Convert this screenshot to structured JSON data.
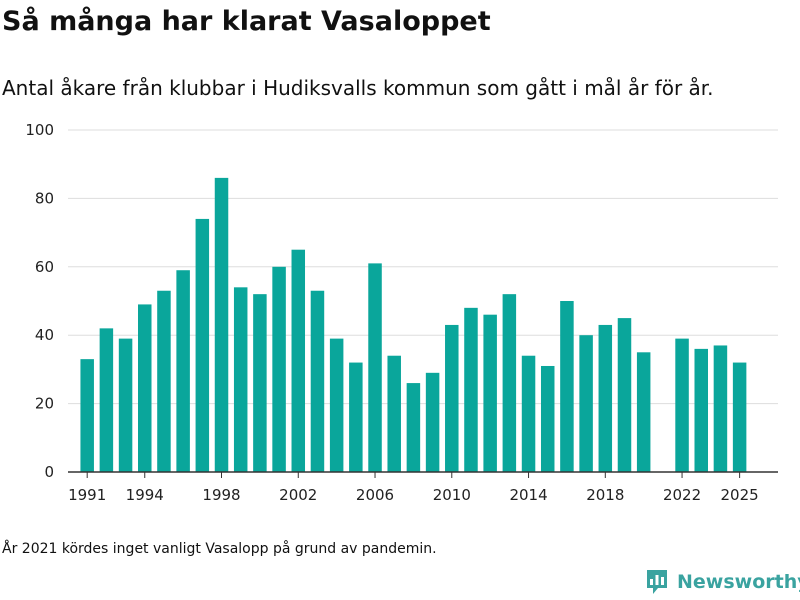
{
  "title": "Så många har klarat Vasaloppet",
  "subtitle": "Antal åkare från klubbar i Hudiksvalls kommun som gått i mål år för år.",
  "footnote": "År 2021 kördes inget vanligt Vasalopp på grund av pandemin.",
  "brand": {
    "name": "Newsworthy",
    "icon": "newsworthy-logo-icon"
  },
  "colors": {
    "bar": "#0aa69b",
    "grid": "#dddddd",
    "axis": "#333333",
    "brand": "#3aa3a0"
  },
  "chart_data": {
    "type": "bar",
    "x": [
      1991,
      1992,
      1993,
      1994,
      1995,
      1996,
      1997,
      1998,
      1999,
      2000,
      2001,
      2002,
      2003,
      2004,
      2005,
      2006,
      2007,
      2008,
      2009,
      2010,
      2011,
      2012,
      2013,
      2014,
      2015,
      2016,
      2017,
      2018,
      2019,
      2020,
      2021,
      2022,
      2023,
      2024,
      2025
    ],
    "values": [
      33,
      42,
      39,
      49,
      53,
      59,
      74,
      86,
      54,
      52,
      60,
      65,
      53,
      39,
      32,
      61,
      34,
      26,
      29,
      43,
      48,
      46,
      52,
      34,
      31,
      50,
      40,
      43,
      45,
      35,
      null,
      39,
      36,
      37,
      32
    ],
    "xticks": [
      "1991",
      "1994",
      "1998",
      "2002",
      "2006",
      "2010",
      "2014",
      "2018",
      "2022",
      "2025"
    ],
    "yticks": [
      "0",
      "20",
      "40",
      "60",
      "80",
      "100"
    ],
    "ylim": [
      0,
      100
    ],
    "xlim": [
      1990,
      2027
    ],
    "grid": true
  }
}
